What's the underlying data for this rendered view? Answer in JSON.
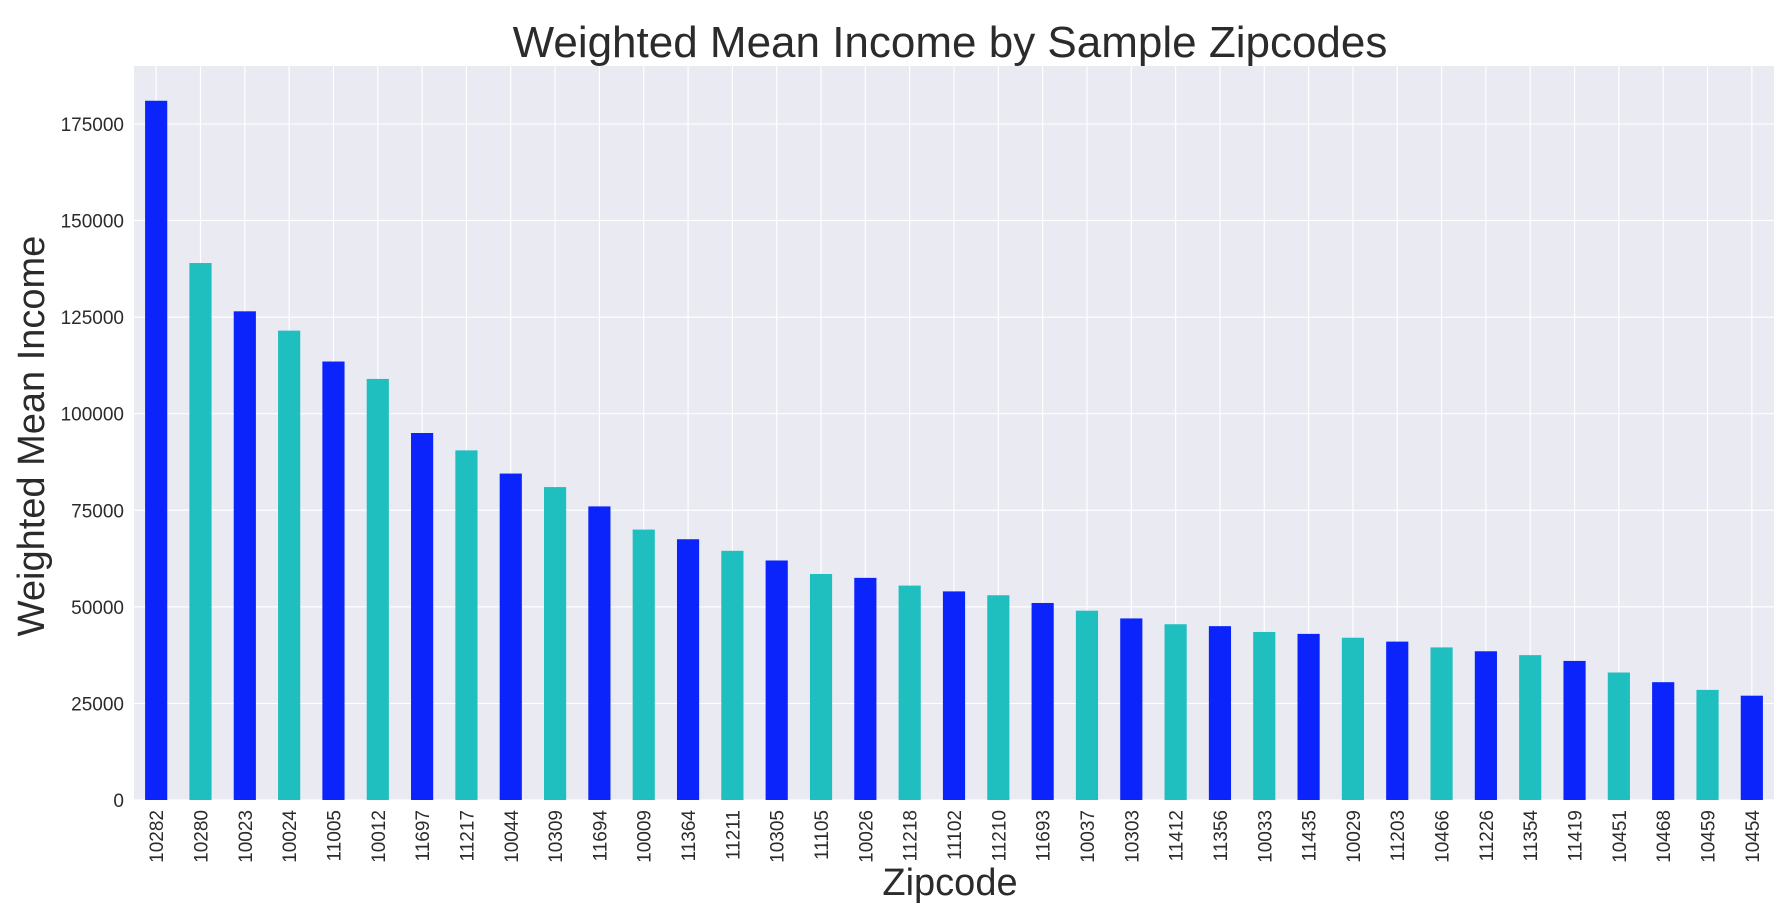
{
  "chart_data": {
    "type": "bar",
    "title": "Weighted Mean Income by Sample Zipcodes",
    "xlabel": "Zipcode",
    "ylabel": "Weighted Mean Income",
    "ylim": [
      0,
      190000
    ],
    "yticks": [
      0,
      25000,
      50000,
      75000,
      100000,
      125000,
      150000,
      175000
    ],
    "ytick_labels": [
      "0",
      "25000",
      "50000",
      "75000",
      "100000",
      "125000",
      "150000",
      "175000"
    ],
    "grid": true,
    "legend": "none",
    "colors": [
      "#0b24fb",
      "#1fbfbf"
    ],
    "background_color": "#e9eaf2",
    "grid_color": "#ffffff",
    "categories": [
      "10282",
      "10280",
      "10023",
      "10024",
      "11005",
      "10012",
      "11697",
      "11217",
      "10044",
      "10309",
      "11694",
      "10009",
      "11364",
      "11211",
      "10305",
      "11105",
      "10026",
      "11218",
      "11102",
      "11210",
      "11693",
      "10037",
      "10303",
      "11412",
      "11356",
      "10033",
      "11435",
      "10029",
      "11203",
      "10466",
      "11226",
      "11354",
      "11419",
      "10451",
      "10468",
      "10459",
      "10454"
    ],
    "values": [
      181000,
      139000,
      126500,
      121500,
      113500,
      109000,
      95000,
      90500,
      84500,
      81000,
      76000,
      70000,
      67500,
      64500,
      62000,
      58500,
      57500,
      55500,
      54000,
      53000,
      51000,
      49000,
      47000,
      45500,
      45000,
      43500,
      43000,
      42000,
      41000,
      39500,
      38500,
      37500,
      36000,
      33000,
      30500,
      28500,
      27000
    ]
  }
}
